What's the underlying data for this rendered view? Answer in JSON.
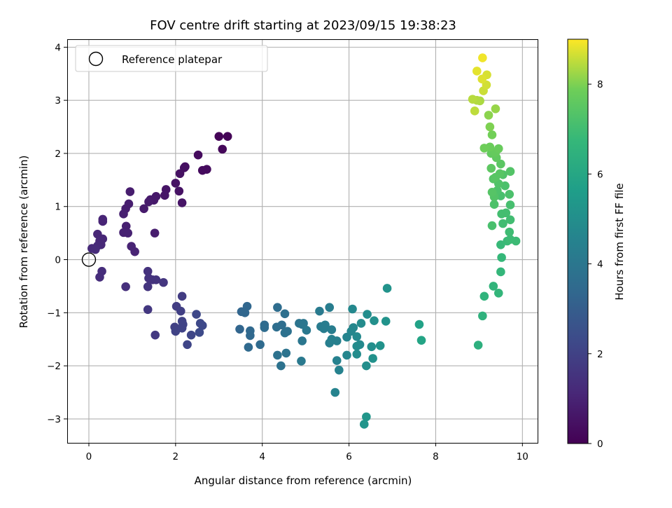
{
  "chart_data": {
    "type": "scatter",
    "title": "FOV centre drift starting at 2023/09/15 19:38:23",
    "xlabel": "Angular distance from reference (arcmin)",
    "ylabel": "Rotation from reference (arcmin)",
    "xlim": [
      -0.5,
      10.35
    ],
    "ylim": [
      -3.45,
      4.15
    ],
    "xticks": [
      0,
      2,
      4,
      6,
      8,
      10
    ],
    "yticks": [
      -3,
      -2,
      -1,
      0,
      1,
      2,
      3,
      4
    ],
    "xtick_labels": [
      "0",
      "2",
      "4",
      "6",
      "8",
      "10"
    ],
    "ytick_labels": [
      "−3",
      "−2",
      "−1",
      "0",
      "1",
      "2",
      "3",
      "4"
    ],
    "grid": true,
    "legend": {
      "position": "top-left",
      "entries": [
        "Reference platepar"
      ]
    },
    "reference_point": {
      "x": 0,
      "y": 0,
      "label": "Reference platepar"
    },
    "colorbar": {
      "label": "Hours from first FF file",
      "colormap": "viridis",
      "range": [
        0,
        9
      ],
      "ticks": [
        0,
        2,
        4,
        6,
        8
      ],
      "tick_labels": [
        "0",
        "2",
        "4",
        "6",
        "8"
      ]
    },
    "points": [
      [
        3.0,
        2.32,
        0.1
      ],
      [
        3.2,
        2.32,
        0.1
      ],
      [
        3.08,
        2.08,
        0.2
      ],
      [
        2.72,
        1.7,
        0.3
      ],
      [
        2.62,
        1.68,
        0.3
      ],
      [
        2.52,
        1.97,
        0.3
      ],
      [
        2.22,
        1.75,
        0.4
      ],
      [
        2.2,
        1.73,
        0.4
      ],
      [
        2.1,
        1.62,
        0.45
      ],
      [
        2.0,
        1.44,
        0.5
      ],
      [
        2.08,
        1.29,
        0.5
      ],
      [
        2.15,
        1.07,
        0.55
      ],
      [
        1.78,
        1.32,
        0.55
      ],
      [
        1.75,
        1.21,
        0.6
      ],
      [
        1.55,
        1.19,
        0.65
      ],
      [
        1.5,
        1.12,
        0.7
      ],
      [
        1.42,
        1.13,
        0.7
      ],
      [
        1.38,
        1.09,
        0.75
      ],
      [
        1.27,
        0.96,
        0.75
      ],
      [
        1.52,
        0.5,
        0.8
      ],
      [
        0.95,
        1.28,
        0.8
      ],
      [
        0.92,
        1.05,
        0.85
      ],
      [
        0.85,
        0.96,
        0.85
      ],
      [
        0.8,
        0.86,
        0.9
      ],
      [
        0.86,
        0.63,
        0.9
      ],
      [
        0.9,
        0.5,
        0.95
      ],
      [
        0.8,
        0.51,
        0.95
      ],
      [
        0.98,
        0.25,
        1.0
      ],
      [
        1.06,
        0.15,
        1.0
      ],
      [
        0.32,
        0.76,
        1.05
      ],
      [
        0.32,
        0.72,
        1.05
      ],
      [
        0.2,
        0.48,
        1.1
      ],
      [
        0.32,
        0.39,
        1.1
      ],
      [
        0.25,
        0.35,
        1.15
      ],
      [
        0.28,
        0.28,
        1.15
      ],
      [
        0.2,
        0.26,
        1.2
      ],
      [
        0.07,
        0.21,
        1.2
      ],
      [
        0.15,
        0.19,
        1.25
      ],
      [
        0.3,
        -0.22,
        1.3
      ],
      [
        0.25,
        -0.33,
        1.3
      ],
      [
        0.85,
        -0.51,
        1.4
      ],
      [
        1.36,
        -0.22,
        1.45
      ],
      [
        1.38,
        -0.35,
        1.5
      ],
      [
        1.47,
        -0.38,
        1.5
      ],
      [
        1.55,
        -0.38,
        1.55
      ],
      [
        1.36,
        -0.51,
        1.55
      ],
      [
        1.72,
        -0.43,
        1.6
      ],
      [
        1.36,
        -0.94,
        1.65
      ],
      [
        1.53,
        -1.42,
        1.7
      ],
      [
        2.15,
        -0.69,
        1.8
      ],
      [
        2.02,
        -0.88,
        1.85
      ],
      [
        2.12,
        -0.97,
        1.9
      ],
      [
        1.98,
        -1.27,
        1.95
      ],
      [
        2.0,
        -1.35,
        2.0
      ],
      [
        2.15,
        -1.16,
        2.0
      ],
      [
        2.17,
        -1.22,
        2.05
      ],
      [
        2.15,
        -1.29,
        2.05
      ],
      [
        2.27,
        -1.6,
        2.1
      ],
      [
        2.36,
        -1.42,
        2.15
      ],
      [
        2.48,
        -1.03,
        2.2
      ],
      [
        2.57,
        -1.2,
        2.25
      ],
      [
        2.62,
        -1.24,
        2.25
      ],
      [
        2.55,
        -1.37,
        2.3
      ],
      [
        3.48,
        -1.31,
        3.3
      ],
      [
        3.52,
        -0.98,
        3.3
      ],
      [
        3.6,
        -1.0,
        3.35
      ],
      [
        3.65,
        -0.88,
        3.35
      ],
      [
        3.72,
        -1.34,
        3.4
      ],
      [
        3.72,
        -1.43,
        3.4
      ],
      [
        3.68,
        -1.65,
        3.45
      ],
      [
        3.95,
        -1.6,
        3.5
      ],
      [
        4.05,
        -1.23,
        3.5
      ],
      [
        4.05,
        -1.28,
        3.55
      ],
      [
        4.35,
        -0.9,
        3.6
      ],
      [
        4.33,
        -1.27,
        3.65
      ],
      [
        4.45,
        -1.23,
        3.65
      ],
      [
        4.52,
        -1.02,
        3.7
      ],
      [
        4.52,
        -1.38,
        3.75
      ],
      [
        4.58,
        -1.35,
        3.75
      ],
      [
        4.35,
        -1.8,
        3.8
      ],
      [
        4.43,
        -2.0,
        3.8
      ],
      [
        4.55,
        -1.76,
        3.85
      ],
      [
        4.85,
        -1.2,
        3.9
      ],
      [
        4.92,
        -1.22,
        3.95
      ],
      [
        4.95,
        -1.2,
        4.0
      ],
      [
        4.92,
        -1.53,
        4.0
      ],
      [
        5.02,
        -1.33,
        4.05
      ],
      [
        4.9,
        -1.91,
        4.1
      ],
      [
        5.32,
        -0.97,
        4.15
      ],
      [
        5.35,
        -1.26,
        4.2
      ],
      [
        5.45,
        -1.23,
        4.25
      ],
      [
        5.42,
        -1.3,
        4.25
      ],
      [
        5.55,
        -0.9,
        4.3
      ],
      [
        5.6,
        -1.32,
        4.3
      ],
      [
        5.55,
        -1.57,
        4.35
      ],
      [
        5.6,
        -1.5,
        4.4
      ],
      [
        5.72,
        -1.53,
        4.4
      ],
      [
        5.72,
        -1.9,
        4.45
      ],
      [
        5.77,
        -2.08,
        4.5
      ],
      [
        5.68,
        -2.5,
        4.55
      ],
      [
        5.95,
        -1.46,
        4.6
      ],
      [
        5.95,
        -1.8,
        4.65
      ],
      [
        6.05,
        -1.35,
        4.65
      ],
      [
        6.1,
        -1.28,
        4.7
      ],
      [
        6.08,
        -0.93,
        4.75
      ],
      [
        6.18,
        -1.45,
        4.8
      ],
      [
        6.25,
        -1.6,
        4.8
      ],
      [
        6.28,
        -1.2,
        4.85
      ],
      [
        6.18,
        -1.63,
        4.85
      ],
      [
        6.18,
        -1.78,
        4.9
      ],
      [
        6.42,
        -1.03,
        4.95
      ],
      [
        6.4,
        -2.0,
        5.0
      ],
      [
        6.52,
        -1.64,
        5.0
      ],
      [
        6.58,
        -1.15,
        5.05
      ],
      [
        6.55,
        -1.86,
        5.1
      ],
      [
        6.72,
        -1.62,
        5.15
      ],
      [
        6.88,
        -0.54,
        5.2
      ],
      [
        6.85,
        -1.16,
        5.2
      ],
      [
        6.35,
        -3.1,
        5.25
      ],
      [
        6.4,
        -2.96,
        5.3
      ],
      [
        7.62,
        -1.22,
        5.8
      ],
      [
        7.67,
        -1.52,
        5.9
      ],
      [
        8.98,
        -1.61,
        6.4
      ],
      [
        9.08,
        -1.06,
        6.5
      ],
      [
        9.12,
        -0.69,
        6.55
      ],
      [
        9.33,
        -0.5,
        6.6
      ],
      [
        9.45,
        -0.63,
        6.65
      ],
      [
        9.5,
        -0.23,
        6.7
      ],
      [
        9.52,
        0.04,
        6.75
      ],
      [
        9.5,
        0.28,
        6.8
      ],
      [
        9.65,
        0.35,
        6.85
      ],
      [
        9.72,
        0.38,
        6.9
      ],
      [
        9.85,
        0.35,
        6.9
      ],
      [
        9.7,
        0.52,
        6.95
      ],
      [
        9.72,
        0.75,
        7.0
      ],
      [
        9.55,
        0.68,
        7.0
      ],
      [
        9.62,
        0.88,
        7.05
      ],
      [
        9.52,
        0.86,
        7.05
      ],
      [
        9.72,
        1.03,
        7.1
      ],
      [
        9.3,
        0.64,
        7.15
      ],
      [
        9.5,
        1.2,
        7.15
      ],
      [
        9.6,
        1.39,
        7.2
      ],
      [
        9.7,
        1.23,
        7.2
      ],
      [
        9.35,
        1.04,
        7.25
      ],
      [
        9.42,
        1.3,
        7.25
      ],
      [
        9.45,
        1.43,
        7.3
      ],
      [
        9.55,
        1.6,
        7.3
      ],
      [
        9.72,
        1.66,
        7.35
      ],
      [
        9.35,
        1.18,
        7.35
      ],
      [
        9.3,
        1.27,
        7.4
      ],
      [
        9.33,
        1.52,
        7.4
      ],
      [
        9.38,
        1.55,
        7.45
      ],
      [
        9.48,
        1.62,
        7.45
      ],
      [
        9.5,
        1.8,
        7.5
      ],
      [
        9.28,
        1.72,
        7.55
      ],
      [
        9.4,
        1.92,
        7.6
      ],
      [
        9.28,
        2.0,
        7.65
      ],
      [
        9.38,
        2.02,
        7.7
      ],
      [
        9.45,
        2.09,
        7.75
      ],
      [
        9.25,
        2.12,
        7.8
      ],
      [
        9.12,
        2.1,
        7.85
      ],
      [
        9.3,
        2.35,
        7.9
      ],
      [
        9.25,
        2.5,
        8.0
      ],
      [
        9.22,
        2.72,
        8.1
      ],
      [
        9.38,
        2.84,
        8.2
      ],
      [
        9.02,
        2.99,
        8.35
      ],
      [
        8.95,
        3.0,
        8.4
      ],
      [
        8.85,
        3.02,
        8.45
      ],
      [
        8.9,
        2.8,
        8.5
      ],
      [
        9.1,
        3.18,
        8.6
      ],
      [
        9.17,
        3.29,
        8.65
      ],
      [
        9.18,
        3.48,
        8.7
      ],
      [
        9.07,
        3.4,
        8.75
      ],
      [
        8.95,
        3.55,
        8.8
      ],
      [
        9.08,
        3.8,
        8.9
      ]
    ]
  }
}
